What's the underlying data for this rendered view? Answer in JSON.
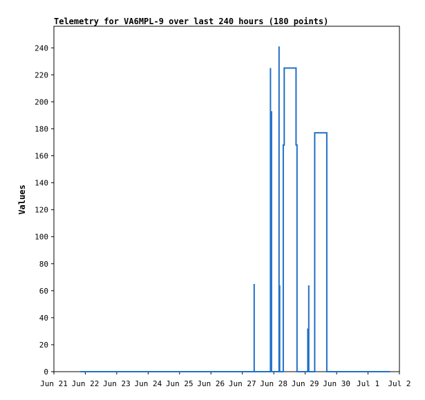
{
  "chart_data": {
    "type": "line",
    "title": "Telemetry for VA6MPL-9 over last 240 hours (180 points)",
    "xlabel": "",
    "ylabel": "Values",
    "x_ticks": [
      "Jun 21",
      "Jun 22",
      "Jun 23",
      "Jun 24",
      "Jun 25",
      "Jun 26",
      "Jun 27",
      "Jun 28",
      "Jun 29",
      "Jun 30",
      "Jul 1",
      "Jul 2"
    ],
    "y_ticks": [
      "0",
      "20",
      "40",
      "60",
      "80",
      "100",
      "120",
      "140",
      "160",
      "180",
      "200",
      "220",
      "240"
    ],
    "xlim": [
      "2023-06-21T00:00",
      "2023-07-02T00:00"
    ],
    "ylim": [
      0,
      256
    ],
    "grid": false,
    "color": "#1f6fc5",
    "series": [
      {
        "points": [
          [
            "2023-06-21T20:00",
            0
          ],
          [
            "2023-06-27T09:00",
            0
          ],
          [
            "2023-06-27T09:00",
            65
          ],
          [
            "2023-06-27T09:00",
            0
          ],
          [
            "2023-06-27T21:30",
            0
          ],
          [
            "2023-06-27T21:30",
            112
          ],
          [
            "2023-06-27T21:30",
            225
          ],
          [
            "2023-06-27T21:30",
            0
          ],
          [
            "2023-06-27T22:15",
            0
          ],
          [
            "2023-06-27T22:15",
            193
          ],
          [
            "2023-06-27T22:15",
            0
          ],
          [
            "2023-06-28T04:00",
            0
          ],
          [
            "2023-06-28T04:00",
            128
          ],
          [
            "2023-06-28T04:00",
            241
          ],
          [
            "2023-06-28T04:00",
            0
          ],
          [
            "2023-06-28T04:30",
            0
          ],
          [
            "2023-06-28T04:30",
            64
          ],
          [
            "2023-06-28T04:30",
            0
          ],
          [
            "2023-06-28T07:15",
            0
          ],
          [
            "2023-06-28T07:15",
            56
          ],
          [
            "2023-06-28T07:15",
            168
          ],
          [
            "2023-06-28T08:00",
            168
          ],
          [
            "2023-06-28T08:00",
            225
          ],
          [
            "2023-06-28T17:00",
            225
          ],
          [
            "2023-06-28T17:00",
            168
          ],
          [
            "2023-06-28T17:45",
            168
          ],
          [
            "2023-06-28T17:45",
            56
          ],
          [
            "2023-06-28T17:45",
            0
          ],
          [
            "2023-06-29T02:00",
            0
          ],
          [
            "2023-06-29T02:00",
            32
          ],
          [
            "2023-06-29T02:00",
            0
          ],
          [
            "2023-06-29T02:45",
            0
          ],
          [
            "2023-06-29T02:45",
            64
          ],
          [
            "2023-06-29T02:45",
            0
          ],
          [
            "2023-06-29T07:15",
            0
          ],
          [
            "2023-06-29T07:15",
            88
          ],
          [
            "2023-06-29T07:15",
            177
          ],
          [
            "2023-06-29T16:30",
            177
          ],
          [
            "2023-06-29T16:30",
            88
          ],
          [
            "2023-06-29T16:30",
            0
          ],
          [
            "2023-07-01T17:00",
            0
          ]
        ]
      }
    ]
  }
}
